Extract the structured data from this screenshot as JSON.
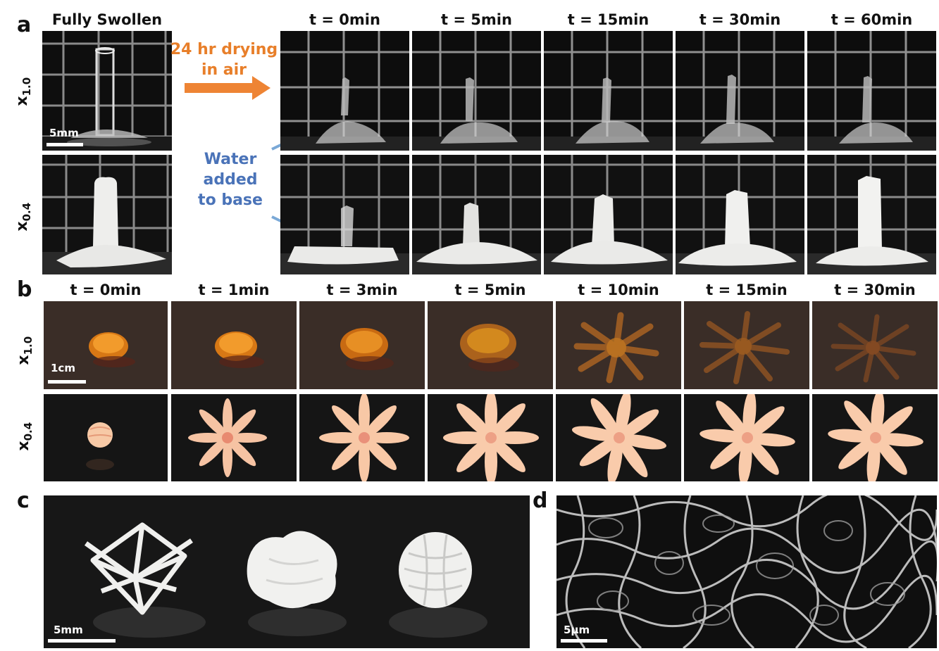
{
  "panels": {
    "a": "a",
    "b": "b",
    "c": "c",
    "d": "d"
  },
  "panel_a": {
    "swollen_title": "Fully Swollen",
    "times": [
      "t = 0min",
      "t = 5min",
      "t = 15min",
      "t = 30min",
      "t = 60min"
    ],
    "row1_label": {
      "base": "x",
      "sub": "1.0"
    },
    "row2_label": {
      "base": "x",
      "sub": "0.4"
    },
    "drying_line1": "24 hr drying",
    "drying_line2": "in air",
    "water_line1": "Water",
    "water_line2": "added",
    "water_line3": "to base",
    "scale": "5mm"
  },
  "panel_b": {
    "times": [
      "t = 0min",
      "t = 1min",
      "t = 3min",
      "t = 5min",
      "t = 10min",
      "t = 15min",
      "t = 30min"
    ],
    "row1_label": {
      "base": "x",
      "sub": "1.0"
    },
    "row2_label": {
      "base": "x",
      "sub": "0.4"
    },
    "scale": "1cm"
  },
  "panel_c": {
    "scale": "5mm"
  },
  "panel_d": {
    "scale": "5µm"
  },
  "colors": {
    "orange": "#e87f2a",
    "blue": "#4a73b8",
    "arrow_orange": "#ee8434",
    "arrow_blue": "#7aa8d6"
  }
}
